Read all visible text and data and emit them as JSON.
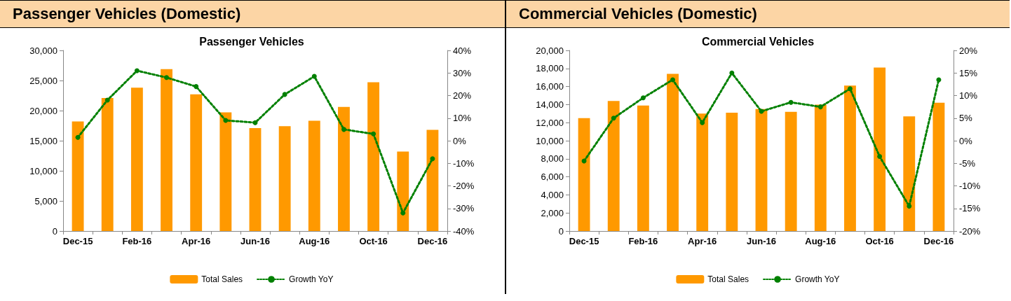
{
  "chart_data": [
    {
      "type": "bar",
      "title": "Passenger Vehicles (Domestic)",
      "subtitle": "Passenger Vehicles",
      "categories": [
        "Dec-15",
        null,
        "Feb-16",
        null,
        "Apr-16",
        null,
        "Jun-16",
        null,
        "Aug-16",
        null,
        "Oct-16",
        null,
        "Dec-16"
      ],
      "series": [
        {
          "name": "Total Sales",
          "color": "#ff9900",
          "values": [
            18200,
            22100,
            23800,
            26900,
            22700,
            19700,
            17100,
            17400,
            18300,
            20600,
            24700,
            13200,
            16800
          ]
        },
        {
          "name": "Growth YoY",
          "type": "line",
          "axis": "y2",
          "color": "#008000",
          "marker": "circle",
          "line_style": "dotted",
          "values": [
            1.5,
            18,
            31,
            28,
            24,
            9,
            8,
            20.5,
            28.5,
            5,
            3,
            -32,
            -8
          ]
        }
      ],
      "ylim": [
        0,
        30000
      ],
      "yticks": [
        0,
        {
          "value": 5000,
          "label": "5,000"
        },
        {
          "value": 10000,
          "label": "10,000"
        },
        {
          "value": 15000,
          "label": "15,000"
        },
        {
          "value": 20000,
          "label": "20,000"
        },
        {
          "value": 25000,
          "label": "25,000"
        },
        {
          "value": 30000,
          "label": "30,000"
        }
      ],
      "y2lim": [
        -40,
        40
      ],
      "y2ticks": [
        {
          "value": -40,
          "label": "-40%"
        },
        {
          "value": -30,
          "label": "-30%"
        },
        {
          "value": -20,
          "label": "-20%"
        },
        {
          "value": -10,
          "label": "-10%"
        },
        {
          "value": 0,
          "label": "0%"
        },
        {
          "value": 10,
          "label": "10%"
        },
        {
          "value": 20,
          "label": "20%"
        },
        {
          "value": 30,
          "label": "30%"
        },
        {
          "value": 40,
          "label": "40%"
        }
      ],
      "grid": false,
      "legend": "bottom"
    },
    {
      "type": "bar",
      "title": "Commercial Vehicles (Domestic)",
      "subtitle": "Commercial Vehicles",
      "categories": [
        "Dec-15",
        null,
        "Feb-16",
        null,
        "Apr-16",
        null,
        "Jun-16",
        null,
        "Aug-16",
        null,
        "Oct-16",
        null,
        "Dec-16"
      ],
      "series": [
        {
          "name": "Total Sales",
          "color": "#ff9900",
          "values": [
            12500,
            14400,
            13900,
            17400,
            13000,
            13100,
            13500,
            13200,
            14000,
            16100,
            18100,
            12700,
            14200
          ]
        },
        {
          "name": "Growth YoY",
          "type": "line",
          "axis": "y2",
          "color": "#008000",
          "marker": "circle",
          "line_style": "dotted",
          "values": [
            -4.5,
            5,
            9.5,
            13.5,
            4,
            15,
            6.5,
            8.5,
            7.5,
            11.5,
            -3.5,
            -14.5,
            13.5
          ]
        }
      ],
      "ylim": [
        0,
        20000
      ],
      "yticks": [
        0,
        {
          "value": 2000,
          "label": "2,000"
        },
        {
          "value": 4000,
          "label": "4,000"
        },
        {
          "value": 6000,
          "label": "6,000"
        },
        {
          "value": 8000,
          "label": "8,000"
        },
        {
          "value": 10000,
          "label": "10,000"
        },
        {
          "value": 12000,
          "label": "12,000"
        },
        {
          "value": 14000,
          "label": "14,000"
        },
        {
          "value": 16000,
          "label": "16,000"
        },
        {
          "value": 18000,
          "label": "18,000"
        },
        {
          "value": 20000,
          "label": "20,000"
        }
      ],
      "y2lim": [
        -20,
        20
      ],
      "y2ticks": [
        {
          "value": -20,
          "label": "-20%"
        },
        {
          "value": -15,
          "label": "-15%"
        },
        {
          "value": -10,
          "label": "-10%"
        },
        {
          "value": -5,
          "label": "-5%"
        },
        {
          "value": 0,
          "label": "0%"
        },
        {
          "value": 5,
          "label": "5%"
        },
        {
          "value": 10,
          "label": "10%"
        },
        {
          "value": 15,
          "label": "15%"
        },
        {
          "value": 20,
          "label": "20%"
        }
      ],
      "grid": false,
      "legend": "bottom"
    }
  ]
}
